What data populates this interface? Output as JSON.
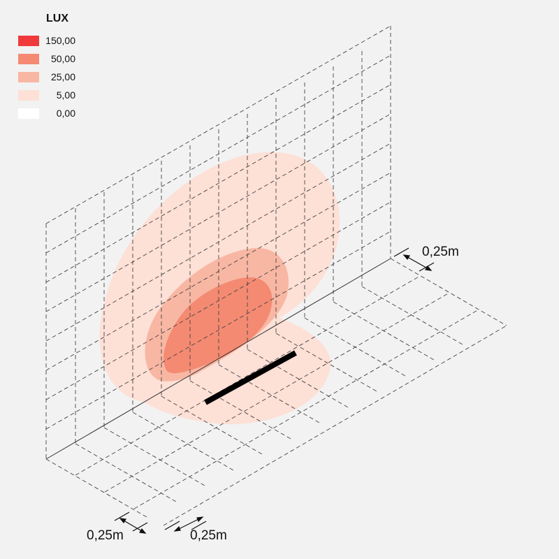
{
  "legend": {
    "title": "LUX",
    "items": [
      {
        "label": "150,00",
        "color": "#f0393b"
      },
      {
        "label": "50,00",
        "color": "#f48a72"
      },
      {
        "label": "25,00",
        "color": "#f8b7a3"
      },
      {
        "label": "5,00",
        "color": "#fde0d6"
      },
      {
        "label": "0,00",
        "color": "#ffffff"
      }
    ]
  },
  "dimensions": {
    "right": "0,25m",
    "bottom_left": "0,25m",
    "bottom_right": "0,25m"
  },
  "colors": {
    "background": "#f2f2f2",
    "grid_line": "#444444",
    "luminaire": "#000000"
  }
}
